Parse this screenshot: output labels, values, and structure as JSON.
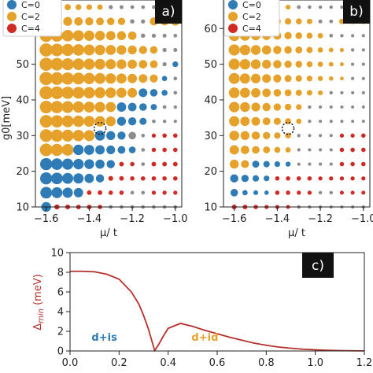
{
  "colors": {
    "C=0": "#2e7bb5",
    "C=2": "#e6a12a",
    "C=4": "#d12a24",
    "gap": "#8c8c8c",
    "line": "#b5302d"
  },
  "chart_data": [
    {
      "type": "scatter",
      "panel_label": "a)",
      "xlabel": "μ/ t",
      "ylabel": "g0[meV]",
      "xlim": [
        -1.65,
        -0.97
      ],
      "ylim": [
        10,
        68
      ],
      "xticks": [
        -1.6,
        -1.4,
        -1.2,
        -1.0
      ],
      "xtick_labels": [
        "−1.6",
        "−1.4",
        "−1.2",
        "−1.0"
      ],
      "yticks": [
        10,
        20,
        30,
        40,
        50,
        60
      ],
      "ytick_labels": [
        "10",
        "20",
        "30",
        "40",
        "50",
        "60"
      ],
      "legend": [
        "C=0",
        "C=2",
        "C=4"
      ],
      "legend_position": "top-left",
      "x_grid": [
        -1.6,
        -1.55,
        -1.5,
        -1.45,
        -1.4,
        -1.35,
        -1.3,
        -1.25,
        -1.2,
        -1.15,
        -1.1,
        -1.05,
        -1.0
      ],
      "y_grid": [
        66,
        62,
        58,
        54,
        50,
        46,
        42,
        38,
        34,
        30,
        26,
        22,
        18,
        14,
        10
      ],
      "point_class_rows": [
        "222222GGGGGGG",
        "22222222GG222",
        "222222222GGGG",
        "22222222222GG",
        "22222222222G0",
        "222222222220G",
        "222222222000G",
        "22222220000GG",
        "2222222000GGG",
        "22222000GG444",
        "222000000G444",
        "000000044G444",
        "0000004444444",
        "00004444GG444",
        "044444GGGGGGG"
      ],
      "point_size_rows": [
        [
          0.42,
          0.4,
          0.38,
          0.35,
          0.33,
          0.31,
          0.2,
          0.18,
          0.17,
          0.16,
          0.15,
          0.14,
          0.13
        ],
        [
          0.7,
          0.65,
          0.62,
          0.58,
          0.55,
          0.52,
          0.5,
          0.48,
          0.22,
          0.2,
          0.55,
          0.55,
          0.58
        ],
        [
          0.95,
          0.9,
          0.85,
          0.8,
          0.75,
          0.7,
          0.66,
          0.62,
          0.58,
          0.22,
          0.2,
          0.18,
          0.16
        ],
        [
          1.0,
          0.95,
          0.9,
          0.85,
          0.8,
          0.76,
          0.72,
          0.68,
          0.62,
          0.55,
          0.5,
          0.2,
          0.18
        ],
        [
          1.0,
          0.95,
          0.9,
          0.86,
          0.82,
          0.78,
          0.74,
          0.7,
          0.65,
          0.58,
          0.52,
          0.2,
          0.34
        ],
        [
          1.0,
          0.96,
          0.92,
          0.88,
          0.84,
          0.8,
          0.76,
          0.72,
          0.66,
          0.6,
          0.54,
          0.3,
          0.16
        ],
        [
          1.0,
          0.96,
          0.92,
          0.88,
          0.84,
          0.8,
          0.76,
          0.72,
          0.68,
          0.6,
          0.5,
          0.36,
          0.16
        ],
        [
          0.95,
          0.92,
          0.88,
          0.84,
          0.8,
          0.76,
          0.72,
          0.66,
          0.58,
          0.5,
          0.38,
          0.16,
          0.14
        ],
        [
          0.95,
          0.92,
          0.88,
          0.84,
          0.8,
          0.76,
          0.7,
          0.62,
          0.55,
          0.46,
          0.16,
          0.14,
          0.13
        ],
        [
          0.95,
          0.92,
          0.88,
          0.84,
          0.8,
          0.72,
          0.62,
          0.55,
          0.5,
          0.15,
          0.2,
          0.22,
          0.22
        ],
        [
          0.95,
          0.9,
          0.86,
          0.76,
          0.72,
          0.66,
          0.6,
          0.52,
          0.44,
          0.16,
          0.22,
          0.22,
          0.22
        ],
        [
          0.9,
          0.86,
          0.82,
          0.76,
          0.7,
          0.64,
          0.56,
          0.24,
          0.22,
          0.16,
          0.24,
          0.24,
          0.24
        ],
        [
          0.9,
          0.86,
          0.8,
          0.74,
          0.66,
          0.56,
          0.26,
          0.24,
          0.22,
          0.22,
          0.22,
          0.22,
          0.22
        ],
        [
          0.86,
          0.8,
          0.74,
          0.66,
          0.24,
          0.24,
          0.22,
          0.22,
          0.16,
          0.16,
          0.2,
          0.2,
          0.2
        ],
        [
          0.7,
          0.28,
          0.26,
          0.24,
          0.24,
          0.22,
          0.16,
          0.15,
          0.14,
          0.14,
          0.14,
          0.14,
          0.14
        ]
      ],
      "marked_point": [
        -1.35,
        32
      ]
    },
    {
      "type": "scatter",
      "panel_label": "b)",
      "xlabel": "μ/ t",
      "ylabel": "",
      "xlim": [
        -1.65,
        -0.97
      ],
      "ylim": [
        10,
        68
      ],
      "xticks": [
        -1.6,
        -1.4,
        -1.2,
        -1.0
      ],
      "xtick_labels": [
        "−1.6",
        "−1.4",
        "−1.2",
        "−1.0"
      ],
      "yticks": [
        10,
        20,
        30,
        40,
        50,
        60
      ],
      "ytick_labels": [
        "10",
        "20",
        "30",
        "40",
        "50",
        "60"
      ],
      "legend": [
        "C=0",
        "C=2",
        "C=4"
      ],
      "legend_position": "top-left",
      "x_grid": [
        -1.6,
        -1.55,
        -1.5,
        -1.45,
        -1.4,
        -1.35,
        -1.3,
        -1.25,
        -1.2,
        -1.15,
        -1.1,
        -1.05,
        -1.0
      ],
      "y_grid": [
        66,
        62,
        58,
        54,
        50,
        46,
        42,
        38,
        34,
        30,
        26,
        22,
        18,
        14,
        10
      ],
      "point_class_rows": [
        "222222GGGGGGG",
        "22222222GG222",
        "222222222GGGG",
        "22222222222GG",
        "22222222222GG",
        "22222222222GG",
        "222222222GGGG",
        "2222222GGGGGG",
        "2222222GGGGGG",
        "222222GGGG444",
        "222222GGGG444",
        "220000GGGG444",
        "0000444444444",
        "00004444GG444",
        "444444GGGGGGG"
      ],
      "point_size_rows": [
        [
          0.38,
          0.36,
          0.33,
          0.3,
          0.28,
          0.26,
          0.17,
          0.15,
          0.14,
          0.13,
          0.12,
          0.12,
          0.11
        ],
        [
          0.6,
          0.56,
          0.52,
          0.48,
          0.44,
          0.4,
          0.36,
          0.32,
          0.18,
          0.16,
          0.32,
          0.32,
          0.3
        ],
        [
          0.78,
          0.72,
          0.66,
          0.6,
          0.54,
          0.48,
          0.42,
          0.36,
          0.3,
          0.16,
          0.14,
          0.13,
          0.12
        ],
        [
          0.82,
          0.76,
          0.7,
          0.64,
          0.56,
          0.5,
          0.44,
          0.38,
          0.3,
          0.24,
          0.2,
          0.14,
          0.12
        ],
        [
          0.82,
          0.76,
          0.7,
          0.62,
          0.56,
          0.48,
          0.42,
          0.36,
          0.3,
          0.24,
          0.18,
          0.13,
          0.12
        ],
        [
          0.8,
          0.74,
          0.68,
          0.6,
          0.54,
          0.46,
          0.4,
          0.34,
          0.28,
          0.22,
          0.16,
          0.13,
          0.12
        ],
        [
          0.78,
          0.72,
          0.66,
          0.58,
          0.5,
          0.44,
          0.38,
          0.32,
          0.26,
          0.14,
          0.13,
          0.12,
          0.12
        ],
        [
          0.76,
          0.7,
          0.62,
          0.56,
          0.48,
          0.42,
          0.34,
          0.14,
          0.13,
          0.12,
          0.12,
          0.12,
          0.11
        ],
        [
          0.74,
          0.66,
          0.6,
          0.52,
          0.46,
          0.38,
          0.3,
          0.13,
          0.12,
          0.12,
          0.12,
          0.11,
          0.11
        ],
        [
          0.7,
          0.62,
          0.56,
          0.48,
          0.4,
          0.34,
          0.13,
          0.12,
          0.12,
          0.12,
          0.2,
          0.2,
          0.22
        ],
        [
          0.66,
          0.58,
          0.5,
          0.44,
          0.36,
          0.3,
          0.13,
          0.12,
          0.12,
          0.12,
          0.22,
          0.22,
          0.22
        ],
        [
          0.62,
          0.54,
          0.46,
          0.4,
          0.34,
          0.28,
          0.13,
          0.12,
          0.12,
          0.12,
          0.22,
          0.22,
          0.22
        ],
        [
          0.56,
          0.48,
          0.4,
          0.34,
          0.22,
          0.22,
          0.22,
          0.22,
          0.2,
          0.2,
          0.2,
          0.2,
          0.2
        ],
        [
          0.5,
          0.3,
          0.26,
          0.22,
          0.22,
          0.22,
          0.2,
          0.2,
          0.14,
          0.14,
          0.18,
          0.18,
          0.18
        ],
        [
          0.26,
          0.24,
          0.22,
          0.2,
          0.2,
          0.18,
          0.14,
          0.13,
          0.12,
          0.12,
          0.12,
          0.12,
          0.12
        ]
      ],
      "marked_point": [
        -1.35,
        32
      ]
    },
    {
      "type": "line",
      "panel_label": "c)",
      "xlabel": "",
      "ylabel": "Δmin (meV)",
      "ylabel_parts": [
        "Δ",
        "min",
        " (meV)"
      ],
      "xlim": [
        0.0,
        1.2
      ],
      "ylim": [
        0,
        10
      ],
      "xticks": [
        0.0,
        0.2,
        0.4,
        0.6,
        0.8,
        1.0,
        1.2
      ],
      "xtick_labels": [
        "0.0",
        "0.2",
        "0.4",
        "0.6",
        "0.8",
        "1.0",
        "1.2"
      ],
      "yticks": [
        0,
        2,
        4,
        6,
        8,
        10
      ],
      "ytick_labels": [
        "0",
        "2",
        "4",
        "6",
        "8",
        "10"
      ],
      "annotations": [
        {
          "text": "d+is",
          "x": 0.14,
          "y": 1.05,
          "color_key": "C=0"
        },
        {
          "text": "d+id",
          "x": 0.55,
          "y": 1.05,
          "color_key": "C=2"
        }
      ],
      "x": [
        0.0,
        0.05,
        0.1,
        0.15,
        0.2,
        0.25,
        0.28,
        0.3,
        0.32,
        0.345,
        0.36,
        0.38,
        0.4,
        0.42,
        0.45,
        0.5,
        0.55,
        0.6,
        0.65,
        0.7,
        0.75,
        0.8,
        0.85,
        0.9,
        0.95,
        1.0,
        1.05,
        1.1,
        1.15,
        1.2
      ],
      "y": [
        8.1,
        8.1,
        8.05,
        7.8,
        7.3,
        6.0,
        4.8,
        3.6,
        2.2,
        0.05,
        0.6,
        1.5,
        2.3,
        2.5,
        2.8,
        2.5,
        2.1,
        1.75,
        1.4,
        1.1,
        0.8,
        0.58,
        0.4,
        0.28,
        0.18,
        0.12,
        0.07,
        0.04,
        0.02,
        0.01
      ]
    }
  ]
}
